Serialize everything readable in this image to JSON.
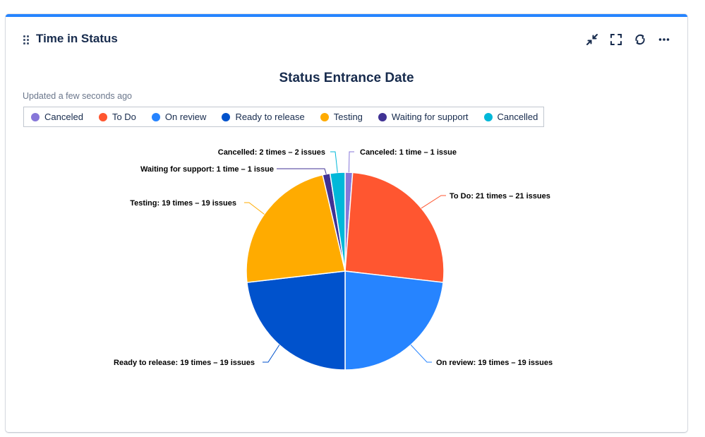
{
  "gadget": {
    "title": "Time in Status",
    "accent": "#2684ff",
    "toolbar": [
      "minimize-icon",
      "fullscreen-icon",
      "refresh-icon",
      "more-icon"
    ]
  },
  "updated_text": "Updated a few seconds ago",
  "chart_data": {
    "type": "pie",
    "title": "Status Entrance Date",
    "legend_position": "top-left",
    "slices": [
      {
        "name": "Canceled",
        "value": 1,
        "color": "#8777d9",
        "label": "Canceled: 1 time – 1 issue"
      },
      {
        "name": "To Do",
        "value": 21,
        "color": "#ff5630",
        "label": "To Do: 21 times – 21 issues"
      },
      {
        "name": "On review",
        "value": 19,
        "color": "#2684ff",
        "label": "On review: 19 times – 19 issues"
      },
      {
        "name": "Ready to release",
        "value": 19,
        "color": "#0052cc",
        "label": "Ready to release: 19 times – 19 issues"
      },
      {
        "name": "Testing",
        "value": 19,
        "color": "#ffab00",
        "label": "Testing: 19 times – 19 issues"
      },
      {
        "name": "Waiting for support",
        "value": 1,
        "color": "#403294",
        "label": "Waiting for support: 1 time – 1 issue"
      },
      {
        "name": "Cancelled",
        "value": 2,
        "color": "#00b8d9",
        "label": "Cancelled: 2 times – 2 issues"
      }
    ]
  }
}
